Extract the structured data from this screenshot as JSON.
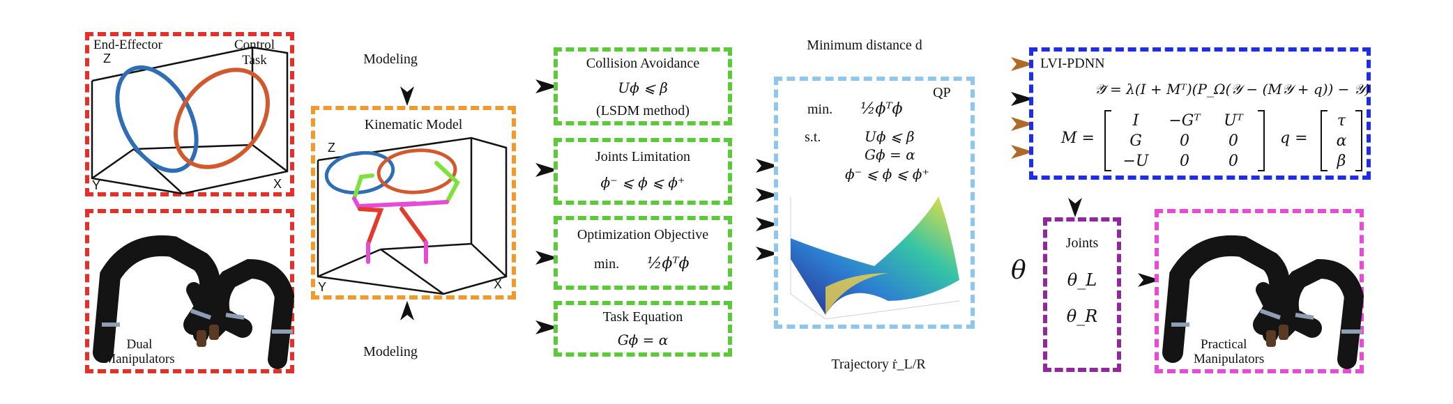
{
  "panel_end_effector": {
    "label_left": "End-Effector",
    "label_right_line1": "Control",
    "label_right_line2": "Task",
    "axis_z": "Z",
    "axis_y": "Y",
    "axis_x": "X",
    "colors": {
      "border": "#e0322b",
      "circle1": "#2f6db5",
      "circle2": "#d2582e"
    }
  },
  "panel_dual": {
    "label_line1": "Dual",
    "label_line2": "Manipulators",
    "colors": {
      "border": "#e0322b"
    }
  },
  "modeling_top": "Modeling",
  "modeling_bottom": "Modeling",
  "panel_kinematic": {
    "title": "Kinematic Model",
    "axis_z": "Z",
    "axis_y": "Y",
    "axis_x": "X",
    "colors": {
      "border": "#ef9a2e",
      "arm_red": "#e33a2a",
      "arm_magenta": "#e64bd6",
      "arm_green": "#7fe23a"
    }
  },
  "panel_collision": {
    "title": "Collision Avoidance",
    "equation": "Uϕ ⩽ β",
    "method": "(LSDM method)"
  },
  "panel_joints_limit": {
    "title": "Joints Limitation",
    "equation": "ϕ⁻ ⩽ ϕ ⩽ ϕ⁺"
  },
  "panel_objective": {
    "title": "Optimization Objective",
    "prefix": "min.",
    "equation": "½ϕᵀϕ"
  },
  "panel_task": {
    "title": "Task Equation",
    "equation": "Gϕ = α"
  },
  "green_color": "#5cc93a",
  "minimum_distance": "Minimum distance d",
  "panel_qp": {
    "tag": "QP",
    "min_label": "min.",
    "min_expr": "½ϕᵀϕ",
    "st_label": "s.t.",
    "c1": "Uϕ ⩽ β",
    "c2": "Gϕ = α",
    "c3": "ϕ⁻ ⩽ ϕ ⩽ ϕ⁺",
    "colors": {
      "border": "#8fc7ec"
    }
  },
  "trajectory": "Trajectory ṙ_L/R",
  "panel_lvi": {
    "title": "LVI-PDNN",
    "dynamics": "𝒴̇ = λ(I + Mᵀ)(P_Ω(𝒴 − (M𝒴 + q)) − 𝒴)",
    "m_label": "M =",
    "m_rows": [
      [
        "I",
        "−Gᵀ",
        "Uᵀ"
      ],
      [
        "G",
        "0",
        "0"
      ],
      [
        "−U",
        "0",
        "0"
      ]
    ],
    "q_label": "q =",
    "q_rows": [
      "τ",
      "α",
      "β"
    ],
    "colors": {
      "border": "#1f2fe0"
    }
  },
  "theta": "θ",
  "panel_joints": {
    "title": "Joints",
    "theta_l": "θ_L",
    "theta_r": "θ_R",
    "colors": {
      "border": "#8e2a9a"
    }
  },
  "panel_practical": {
    "label_line1": "Practical",
    "label_line2": "Manipulators",
    "colors": {
      "border": "#e64bd6"
    }
  },
  "arrow_colors": {
    "black": "#111111",
    "brown": "#b06a28"
  }
}
